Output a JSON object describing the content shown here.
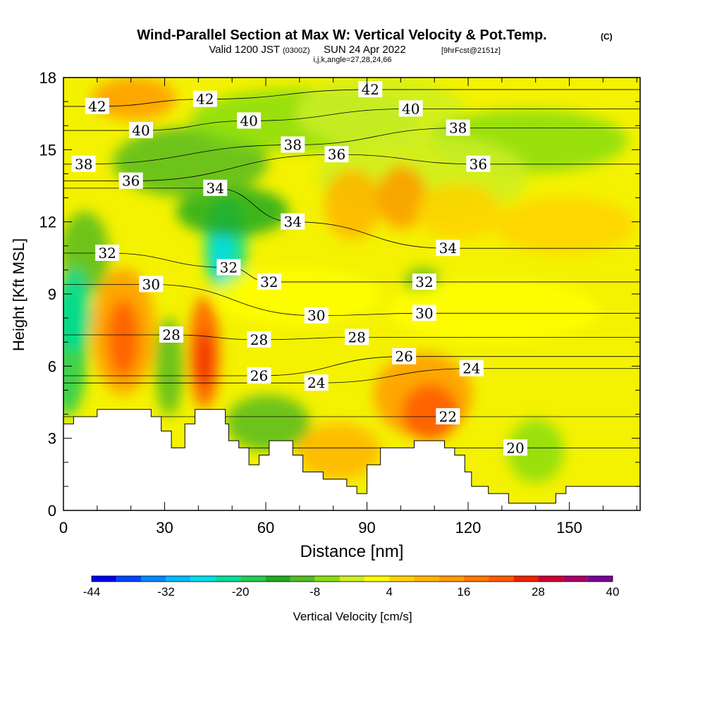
{
  "chart_data": {
    "type": "heatmap",
    "title": "Wind-Parallel Section at Max W: Vertical Velocity & Pot.Temp.",
    "title_mark": "(C)",
    "subtitle_prefix": "Valid 1200 JST",
    "subtitle_utc": "(0300Z)",
    "subtitle_date": "SUN 24 Apr 2022",
    "subtitle_fcst": "[9hrFcst@2151z]",
    "subtitle2": "i,j,k,angle=27,28,24,66",
    "xlabel": "Distance [nm]",
    "ylabel": "Height [Kft MSL]",
    "xlim": [
      0,
      171
    ],
    "ylim": [
      0,
      18
    ],
    "xticks": [
      0,
      30,
      60,
      90,
      120,
      150
    ],
    "yticks": [
      0,
      3,
      6,
      9,
      12,
      15,
      18
    ],
    "colorbar": {
      "label": "Vertical Velocity [cm/s]",
      "tick_labels": [
        "-44",
        "-32",
        "-20",
        "-8",
        "4",
        "16",
        "28",
        "40"
      ],
      "tick_values": [
        -44,
        -32,
        -20,
        -8,
        4,
        16,
        28,
        40
      ],
      "levels": [
        -44,
        -40,
        -36,
        -32,
        -28,
        -24,
        -20,
        -16,
        -12,
        -8,
        -4,
        0,
        4,
        8,
        12,
        16,
        20,
        24,
        28,
        32,
        36,
        40
      ],
      "colors": [
        "#0000ee",
        "#0044ff",
        "#0088ff",
        "#00bbff",
        "#00ddee",
        "#00dd99",
        "#22cc55",
        "#22aa22",
        "#55bb22",
        "#88dd11",
        "#ccee22",
        "#ffff00",
        "#ffd200",
        "#ffb400",
        "#ff9a00",
        "#ff7a00",
        "#ff5a00",
        "#ee2200",
        "#cc0033",
        "#aa0066",
        "#7a0099"
      ]
    },
    "isentropes": [
      {
        "label": "20",
        "theta": 20,
        "x": 134,
        "y": 2.6
      },
      {
        "label": "22",
        "theta": 22,
        "x": 114,
        "y": 3.9
      },
      {
        "label": "24",
        "theta": 24,
        "x": 75,
        "y": 5.3
      },
      {
        "label": "24",
        "theta": 24,
        "x": 121,
        "y": 5.9
      },
      {
        "label": "26",
        "theta": 26,
        "x": 58,
        "y": 5.6
      },
      {
        "label": "26",
        "theta": 26,
        "x": 101,
        "y": 6.4
      },
      {
        "label": "28",
        "theta": 28,
        "x": 32,
        "y": 7.3
      },
      {
        "label": "28",
        "theta": 28,
        "x": 58,
        "y": 7.1
      },
      {
        "label": "28",
        "theta": 28,
        "x": 87,
        "y": 7.2
      },
      {
        "label": "30",
        "theta": 30,
        "x": 26,
        "y": 9.4
      },
      {
        "label": "30",
        "theta": 30,
        "x": 75,
        "y": 8.1
      },
      {
        "label": "30",
        "theta": 30,
        "x": 107,
        "y": 8.2
      },
      {
        "label": "32",
        "theta": 32,
        "x": 13,
        "y": 10.7
      },
      {
        "label": "32",
        "theta": 32,
        "x": 49,
        "y": 10.1
      },
      {
        "label": "32",
        "theta": 32,
        "x": 61,
        "y": 9.5
      },
      {
        "label": "32",
        "theta": 32,
        "x": 107,
        "y": 9.5
      },
      {
        "label": "34",
        "theta": 34,
        "x": 45,
        "y": 13.4
      },
      {
        "label": "34",
        "theta": 34,
        "x": 68,
        "y": 12.0
      },
      {
        "label": "34",
        "theta": 34,
        "x": 114,
        "y": 10.9
      },
      {
        "label": "36",
        "theta": 36,
        "x": 20,
        "y": 13.7
      },
      {
        "label": "36",
        "theta": 36,
        "x": 81,
        "y": 14.8
      },
      {
        "label": "36",
        "theta": 36,
        "x": 123,
        "y": 14.4
      },
      {
        "label": "38",
        "theta": 38,
        "x": 6,
        "y": 14.4
      },
      {
        "label": "38",
        "theta": 38,
        "x": 68,
        "y": 15.2
      },
      {
        "label": "38",
        "theta": 38,
        "x": 117,
        "y": 15.9
      },
      {
        "label": "40",
        "theta": 40,
        "x": 23,
        "y": 15.8
      },
      {
        "label": "40",
        "theta": 40,
        "x": 55,
        "y": 16.2
      },
      {
        "label": "40",
        "theta": 40,
        "x": 103,
        "y": 16.7
      },
      {
        "label": "42",
        "theta": 42,
        "x": 10,
        "y": 16.8
      },
      {
        "label": "42",
        "theta": 42,
        "x": 42,
        "y": 17.1
      },
      {
        "label": "42",
        "theta": 42,
        "x": 91,
        "y": 17.5
      }
    ],
    "terrain": [
      [
        0,
        3.6
      ],
      [
        3,
        3.6
      ],
      [
        3,
        3.9
      ],
      [
        10,
        3.9
      ],
      [
        10,
        4.2
      ],
      [
        26,
        4.2
      ],
      [
        26,
        3.9
      ],
      [
        29,
        3.9
      ],
      [
        29,
        3.3
      ],
      [
        32,
        3.3
      ],
      [
        32,
        2.6
      ],
      [
        36,
        2.6
      ],
      [
        36,
        3.6
      ],
      [
        39,
        3.6
      ],
      [
        39,
        4.2
      ],
      [
        48,
        4.2
      ],
      [
        48,
        3.6
      ],
      [
        49,
        3.6
      ],
      [
        49,
        2.9
      ],
      [
        52,
        2.9
      ],
      [
        52,
        2.6
      ],
      [
        55,
        2.6
      ],
      [
        55,
        1.9
      ],
      [
        58,
        1.9
      ],
      [
        58,
        2.3
      ],
      [
        61,
        2.3
      ],
      [
        61,
        2.9
      ],
      [
        68,
        2.9
      ],
      [
        68,
        2.3
      ],
      [
        71,
        2.3
      ],
      [
        71,
        1.6
      ],
      [
        77,
        1.6
      ],
      [
        77,
        1.3
      ],
      [
        84,
        1.3
      ],
      [
        84,
        1.0
      ],
      [
        87,
        1.0
      ],
      [
        87,
        0.7
      ],
      [
        90,
        0.7
      ],
      [
        90,
        1.9
      ],
      [
        94,
        1.9
      ],
      [
        94,
        2.6
      ],
      [
        104,
        2.6
      ],
      [
        104,
        2.9
      ],
      [
        113,
        2.9
      ],
      [
        113,
        2.6
      ],
      [
        116,
        2.6
      ],
      [
        116,
        2.3
      ],
      [
        119,
        2.3
      ],
      [
        119,
        1.6
      ],
      [
        121,
        1.6
      ],
      [
        121,
        1.0
      ],
      [
        126,
        1.0
      ],
      [
        126,
        0.7
      ],
      [
        132,
        0.7
      ],
      [
        132,
        0.3
      ],
      [
        146,
        0.3
      ],
      [
        146,
        0.7
      ],
      [
        149,
        0.7
      ],
      [
        149,
        1.0
      ],
      [
        171,
        1.0
      ]
    ]
  }
}
